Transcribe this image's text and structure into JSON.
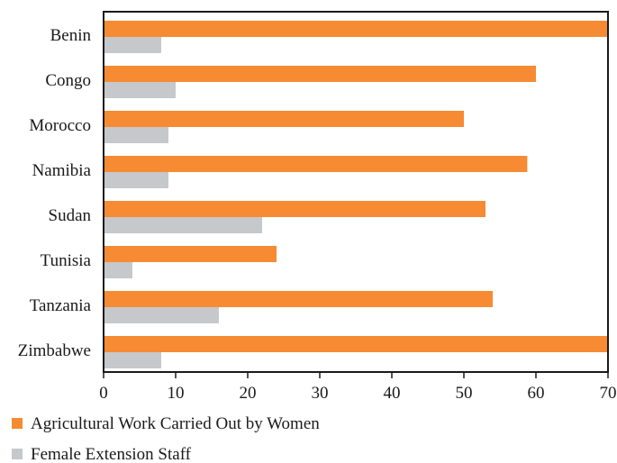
{
  "chart_data": {
    "type": "bar",
    "orientation": "horizontal",
    "categories": [
      "Benin",
      "Congo",
      "Morocco",
      "Namibia",
      "Sudan",
      "Tunisia",
      "Tanzania",
      "Zimbabwe"
    ],
    "series": [
      {
        "name": "Agricultural Work Carried Out by Women",
        "color": "#f68b33",
        "values": [
          70,
          60,
          50,
          58.8,
          53,
          24,
          54,
          70
        ]
      },
      {
        "name": "Female Extension Staff",
        "color": "#c6c8cb",
        "values": [
          8,
          10,
          9,
          9,
          22,
          4,
          16,
          8
        ]
      }
    ],
    "xlim": [
      0,
      70
    ],
    "xticks": [
      0,
      10,
      20,
      30,
      40,
      50,
      60,
      70
    ],
    "grid": false,
    "legend_position": "bottom-left"
  }
}
